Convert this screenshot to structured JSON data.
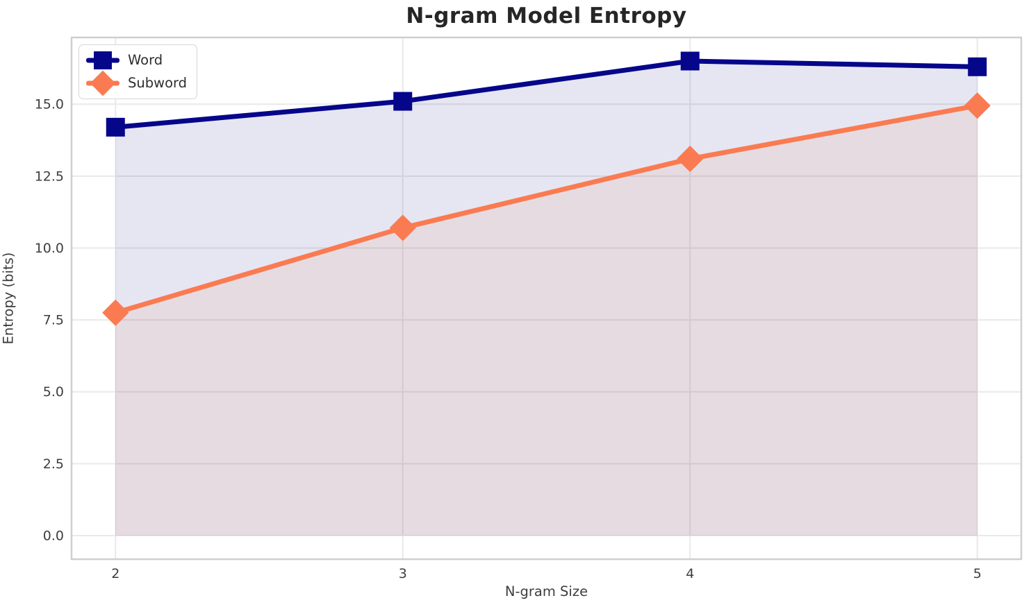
{
  "chart_data": {
    "type": "line",
    "title": "N-gram Model Entropy",
    "xlabel": "N-gram Size",
    "ylabel": "Entropy (bits)",
    "x": [
      2,
      3,
      4,
      5
    ],
    "series": [
      {
        "name": "Word",
        "values": [
          14.2,
          15.1,
          16.5,
          16.3
        ],
        "color": "#06068b",
        "marker": "square",
        "marker_size": 27,
        "line_width": 7,
        "fill_alpha": 0.1
      },
      {
        "name": "Subword",
        "values": [
          7.75,
          10.7,
          13.1,
          14.95
        ],
        "color": "#fa7b51",
        "marker": "diamond",
        "marker_size": 27,
        "line_width": 7,
        "fill_alpha": 0.1
      }
    ],
    "xticks": [
      2,
      3,
      4,
      5
    ],
    "xtick_labels": [
      "2",
      "3",
      "4",
      "5"
    ],
    "yticks": [
      0,
      2.5,
      5,
      7.5,
      10,
      12.5,
      15
    ],
    "ytick_labels": [
      "0.0",
      "2.5",
      "5.0",
      "7.5",
      "10.0",
      "12.5",
      "15.0"
    ],
    "xlim": [
      1.847,
      5.153
    ],
    "ylim": [
      -0.82,
      17.32
    ],
    "area_fill_baseline": 0,
    "grid": true,
    "grid_color": "#e9e9e9",
    "spine_color": "#cfcfcf",
    "tick_label_color": "#3d3d3d",
    "legend_position": "upper left"
  }
}
